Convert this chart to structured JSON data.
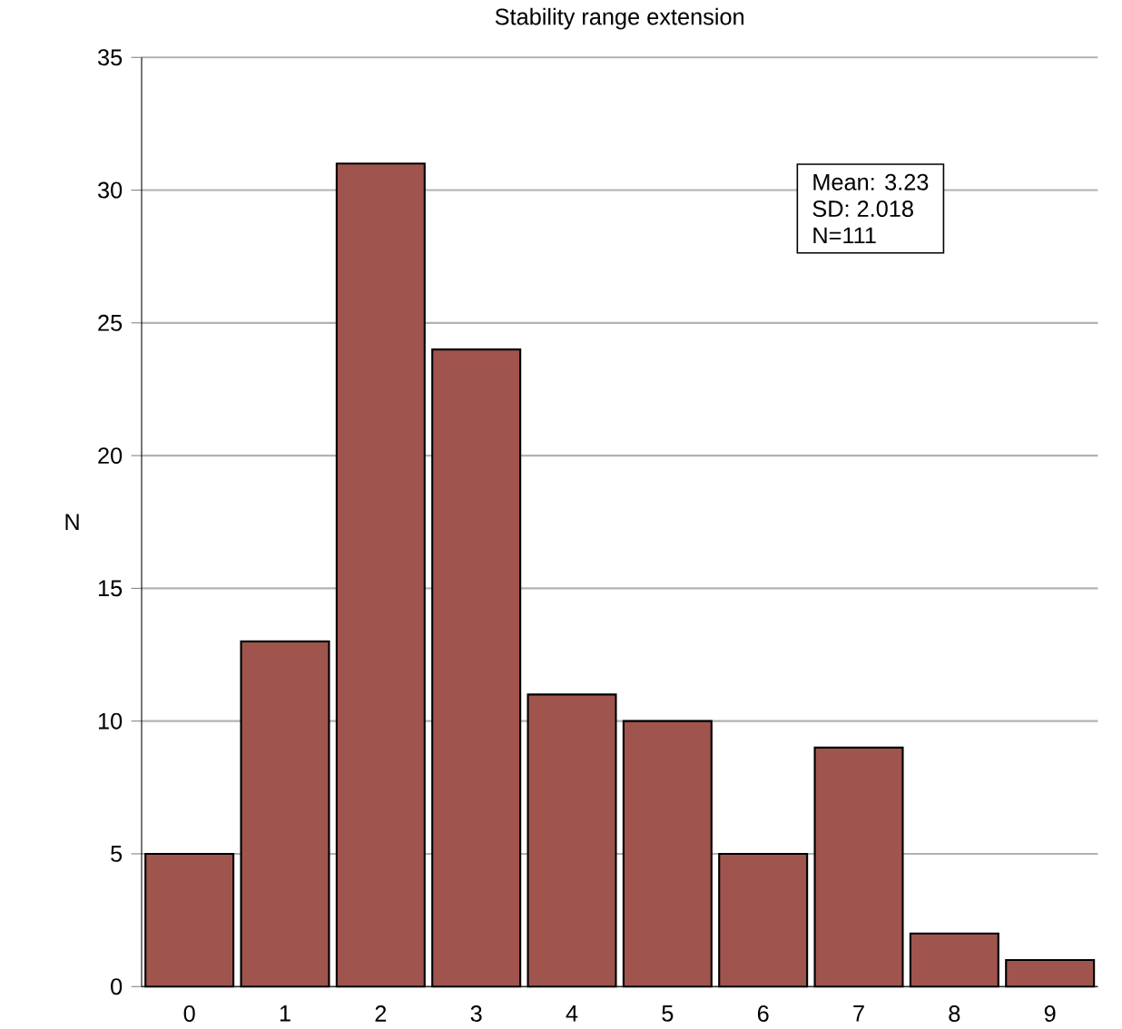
{
  "chart_data": {
    "type": "bar",
    "title": "Stability range extension",
    "ylabel": "N",
    "categories": [
      "0",
      "1",
      "2",
      "3",
      "4",
      "5",
      "6",
      "7",
      "8",
      "9"
    ],
    "values": [
      5,
      13,
      31,
      24,
      11,
      10,
      5,
      9,
      2,
      1
    ],
    "color": "#a0544e",
    "ylim": [
      0,
      35
    ],
    "yticks": [
      0,
      5,
      10,
      15,
      20,
      25,
      30,
      35
    ],
    "grid": "y",
    "annotations": [
      "Mean: 3.23",
      "SD: 2.018",
      "N=111"
    ]
  }
}
